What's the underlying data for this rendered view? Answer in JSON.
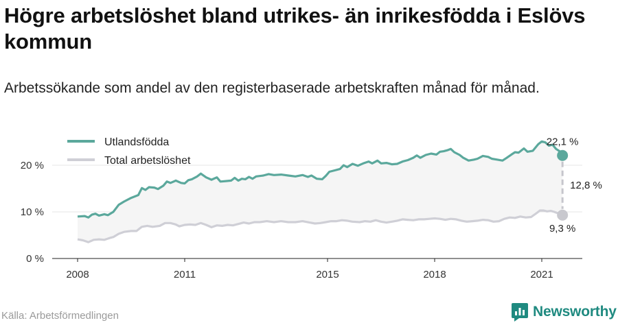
{
  "header": {
    "title": "Högre arbetslöshet bland utrikes- än inrikesfödda i Eslövs kommun",
    "subtitle": "Arbetssökande som andel av den registerbaserade arbetskraften månad för månad."
  },
  "footer": {
    "source": "Källa: Arbetsförmedlingen",
    "brand": "Newsworthy"
  },
  "colors": {
    "foreign": "#5ba89c",
    "total": "#cfcfd6",
    "gap_fill": "#f5f5f5",
    "brand": "#1f8a80"
  },
  "chart_data": {
    "type": "line",
    "y_tick_labels": [
      "0 %",
      "10 %",
      "20 %"
    ],
    "x_tick_labels": [
      "2008",
      "2011",
      "2015",
      "2018",
      "2021"
    ],
    "ylim": [
      0,
      27
    ],
    "xlim": [
      2007.75,
      2021.9
    ],
    "legend_position": "top-left",
    "grid": true,
    "series": [
      {
        "name": "Utlandsfödda",
        "color": "#5ba89c",
        "points": [
          [
            2008.0,
            9.0
          ],
          [
            2008.2,
            9.1
          ],
          [
            2008.3,
            8.8
          ],
          [
            2008.4,
            9.4
          ],
          [
            2008.5,
            9.6
          ],
          [
            2008.6,
            9.2
          ],
          [
            2008.75,
            9.5
          ],
          [
            2008.85,
            9.3
          ],
          [
            2009.0,
            10.0
          ],
          [
            2009.15,
            11.5
          ],
          [
            2009.3,
            12.2
          ],
          [
            2009.5,
            13.0
          ],
          [
            2009.7,
            13.6
          ],
          [
            2009.8,
            15.1
          ],
          [
            2009.9,
            14.7
          ],
          [
            2010.0,
            15.3
          ],
          [
            2010.15,
            15.2
          ],
          [
            2010.25,
            14.9
          ],
          [
            2010.4,
            15.6
          ],
          [
            2010.5,
            16.5
          ],
          [
            2010.6,
            16.2
          ],
          [
            2010.75,
            16.7
          ],
          [
            2010.9,
            16.2
          ],
          [
            2011.0,
            16.1
          ],
          [
            2011.1,
            16.8
          ],
          [
            2011.2,
            17.0
          ],
          [
            2011.35,
            17.6
          ],
          [
            2011.45,
            18.2
          ],
          [
            2011.6,
            17.4
          ],
          [
            2011.75,
            16.9
          ],
          [
            2011.9,
            17.4
          ],
          [
            2012.0,
            16.5
          ],
          [
            2012.15,
            16.6
          ],
          [
            2012.3,
            16.7
          ],
          [
            2012.4,
            17.3
          ],
          [
            2012.5,
            16.7
          ],
          [
            2012.6,
            17.1
          ],
          [
            2012.7,
            17.0
          ],
          [
            2012.8,
            17.5
          ],
          [
            2012.9,
            17.1
          ],
          [
            2013.0,
            17.6
          ],
          [
            2013.2,
            17.8
          ],
          [
            2013.35,
            18.1
          ],
          [
            2013.5,
            17.9
          ],
          [
            2013.7,
            18.0
          ],
          [
            2013.9,
            17.8
          ],
          [
            2014.1,
            17.6
          ],
          [
            2014.3,
            17.9
          ],
          [
            2014.45,
            17.5
          ],
          [
            2014.55,
            17.8
          ],
          [
            2014.7,
            17.1
          ],
          [
            2014.85,
            17.0
          ],
          [
            2014.95,
            17.7
          ],
          [
            2015.05,
            18.6
          ],
          [
            2015.2,
            18.9
          ],
          [
            2015.35,
            19.2
          ],
          [
            2015.45,
            20.0
          ],
          [
            2015.55,
            19.6
          ],
          [
            2015.7,
            20.3
          ],
          [
            2015.85,
            19.9
          ],
          [
            2016.0,
            20.4
          ],
          [
            2016.15,
            20.8
          ],
          [
            2016.25,
            20.4
          ],
          [
            2016.4,
            21.0
          ],
          [
            2016.5,
            20.4
          ],
          [
            2016.65,
            20.5
          ],
          [
            2016.8,
            20.2
          ],
          [
            2016.95,
            20.3
          ],
          [
            2017.1,
            20.8
          ],
          [
            2017.25,
            21.1
          ],
          [
            2017.4,
            21.6
          ],
          [
            2017.5,
            22.1
          ],
          [
            2017.6,
            21.6
          ],
          [
            2017.75,
            22.2
          ],
          [
            2017.9,
            22.5
          ],
          [
            2018.05,
            22.3
          ],
          [
            2018.15,
            22.9
          ],
          [
            2018.25,
            23.0
          ],
          [
            2018.35,
            23.2
          ],
          [
            2018.45,
            23.5
          ],
          [
            2018.55,
            22.8
          ],
          [
            2018.7,
            22.2
          ],
          [
            2018.8,
            21.6
          ],
          [
            2018.95,
            21.0
          ],
          [
            2019.1,
            21.2
          ],
          [
            2019.2,
            21.4
          ],
          [
            2019.35,
            22.0
          ],
          [
            2019.5,
            21.8
          ],
          [
            2019.6,
            21.4
          ],
          [
            2019.75,
            21.2
          ],
          [
            2019.9,
            21.0
          ],
          [
            2020.0,
            21.5
          ],
          [
            2020.15,
            22.3
          ],
          [
            2020.25,
            22.8
          ],
          [
            2020.35,
            22.7
          ],
          [
            2020.5,
            23.6
          ],
          [
            2020.6,
            22.9
          ],
          [
            2020.75,
            23.1
          ],
          [
            2020.9,
            24.5
          ],
          [
            2021.0,
            25.1
          ],
          [
            2021.1,
            24.9
          ],
          [
            2021.2,
            24.2
          ],
          [
            2021.3,
            24.4
          ],
          [
            2021.4,
            23.5
          ],
          [
            2021.5,
            23.0
          ],
          [
            2021.58,
            22.1
          ]
        ],
        "end_label": "22,1 %"
      },
      {
        "name": "Total arbetslöshet",
        "color": "#cfcfd6",
        "points": [
          [
            2008.0,
            4.1
          ],
          [
            2008.15,
            3.9
          ],
          [
            2008.3,
            3.5
          ],
          [
            2008.45,
            4.0
          ],
          [
            2008.6,
            4.1
          ],
          [
            2008.75,
            4.0
          ],
          [
            2008.9,
            4.4
          ],
          [
            2009.0,
            4.6
          ],
          [
            2009.15,
            5.3
          ],
          [
            2009.3,
            5.7
          ],
          [
            2009.5,
            5.9
          ],
          [
            2009.65,
            5.9
          ],
          [
            2009.8,
            6.8
          ],
          [
            2009.95,
            7.0
          ],
          [
            2010.1,
            6.8
          ],
          [
            2010.3,
            7.0
          ],
          [
            2010.45,
            7.6
          ],
          [
            2010.6,
            7.6
          ],
          [
            2010.75,
            7.3
          ],
          [
            2010.85,
            6.9
          ],
          [
            2011.0,
            7.2
          ],
          [
            2011.15,
            7.3
          ],
          [
            2011.3,
            7.2
          ],
          [
            2011.45,
            7.6
          ],
          [
            2011.6,
            7.2
          ],
          [
            2011.75,
            6.7
          ],
          [
            2011.9,
            7.1
          ],
          [
            2012.05,
            7.0
          ],
          [
            2012.2,
            7.2
          ],
          [
            2012.35,
            7.1
          ],
          [
            2012.5,
            7.4
          ],
          [
            2012.65,
            7.7
          ],
          [
            2012.8,
            7.5
          ],
          [
            2012.95,
            7.8
          ],
          [
            2013.1,
            7.8
          ],
          [
            2013.3,
            8.0
          ],
          [
            2013.5,
            7.8
          ],
          [
            2013.7,
            8.0
          ],
          [
            2013.9,
            7.8
          ],
          [
            2014.1,
            7.8
          ],
          [
            2014.3,
            8.0
          ],
          [
            2014.5,
            7.7
          ],
          [
            2014.65,
            7.5
          ],
          [
            2014.8,
            7.6
          ],
          [
            2014.95,
            7.8
          ],
          [
            2015.1,
            8.0
          ],
          [
            2015.25,
            8.0
          ],
          [
            2015.4,
            8.2
          ],
          [
            2015.55,
            8.1
          ],
          [
            2015.7,
            7.9
          ],
          [
            2015.9,
            7.8
          ],
          [
            2016.05,
            8.0
          ],
          [
            2016.2,
            7.9
          ],
          [
            2016.35,
            8.2
          ],
          [
            2016.5,
            7.9
          ],
          [
            2016.65,
            7.7
          ],
          [
            2016.8,
            7.9
          ],
          [
            2016.95,
            8.1
          ],
          [
            2017.1,
            8.4
          ],
          [
            2017.25,
            8.3
          ],
          [
            2017.4,
            8.2
          ],
          [
            2017.55,
            8.4
          ],
          [
            2017.7,
            8.4
          ],
          [
            2017.85,
            8.5
          ],
          [
            2018.0,
            8.6
          ],
          [
            2018.15,
            8.5
          ],
          [
            2018.3,
            8.3
          ],
          [
            2018.45,
            8.5
          ],
          [
            2018.6,
            8.4
          ],
          [
            2018.75,
            8.1
          ],
          [
            2018.9,
            7.9
          ],
          [
            2019.05,
            8.0
          ],
          [
            2019.2,
            8.1
          ],
          [
            2019.35,
            8.3
          ],
          [
            2019.5,
            8.2
          ],
          [
            2019.65,
            7.9
          ],
          [
            2019.8,
            8.0
          ],
          [
            2019.95,
            8.5
          ],
          [
            2020.1,
            8.8
          ],
          [
            2020.25,
            8.7
          ],
          [
            2020.4,
            9.0
          ],
          [
            2020.55,
            8.8
          ],
          [
            2020.7,
            8.9
          ],
          [
            2020.85,
            9.7
          ],
          [
            2020.95,
            10.3
          ],
          [
            2021.05,
            10.3
          ],
          [
            2021.15,
            10.1
          ],
          [
            2021.25,
            10.2
          ],
          [
            2021.35,
            10.0
          ],
          [
            2021.45,
            9.7
          ],
          [
            2021.58,
            9.3
          ]
        ],
        "end_label": "9,3 %"
      }
    ],
    "gap_label": "12,8 %"
  }
}
